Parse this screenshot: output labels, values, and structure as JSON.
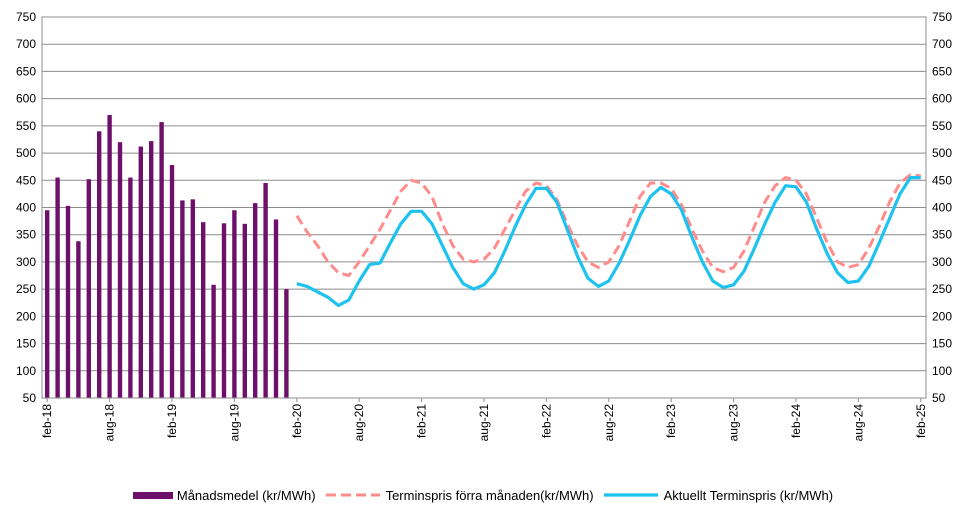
{
  "chart_data": {
    "type": "bar",
    "title": "",
    "xlabel": "",
    "ylabel": "",
    "ylim": [
      50,
      750
    ],
    "y_ticks": [
      50,
      100,
      150,
      200,
      250,
      300,
      350,
      400,
      450,
      500,
      550,
      600,
      650,
      700,
      750
    ],
    "x_tick_labels": [
      "feb-18",
      "aug-18",
      "feb-19",
      "aug-19",
      "feb-20",
      "aug-20",
      "feb-21",
      "aug-21",
      "feb-22",
      "aug-22",
      "feb-23",
      "aug-23",
      "feb-24",
      "aug-24",
      "feb-25"
    ],
    "x_range_months": [
      "2018-02",
      "2025-02"
    ],
    "grid": true,
    "legend_position": "bottom",
    "secondary_y_axis": true,
    "series": [
      {
        "name": "Månadsmedel (kr/MWh)",
        "kind": "bar",
        "color": "#6d0f6b",
        "months": [
          "2018-02",
          "2018-03",
          "2018-04",
          "2018-05",
          "2018-06",
          "2018-07",
          "2018-08",
          "2018-09",
          "2018-10",
          "2018-11",
          "2018-12",
          "2019-01",
          "2019-02",
          "2019-03",
          "2019-04",
          "2019-05",
          "2019-06",
          "2019-07",
          "2019-08",
          "2019-09",
          "2019-10",
          "2019-11",
          "2019-12",
          "2020-01"
        ],
        "values": [
          395,
          455,
          403,
          338,
          452,
          540,
          570,
          520,
          455,
          512,
          522,
          557,
          478,
          413,
          415,
          373,
          258,
          371,
          395,
          370,
          408,
          445,
          378,
          250
        ]
      },
      {
        "name": "Terminspris förra månaden(kr/MWh)",
        "kind": "line",
        "style": "dashed",
        "color": "#ff8c8c",
        "months": [
          "2020-02",
          "2020-03",
          "2020-04",
          "2020-05",
          "2020-06",
          "2020-07",
          "2020-08",
          "2020-09",
          "2020-10",
          "2020-11",
          "2020-12",
          "2021-01",
          "2021-02",
          "2021-03",
          "2021-04",
          "2021-05",
          "2021-06",
          "2021-07",
          "2021-08",
          "2021-09",
          "2021-10",
          "2021-11",
          "2021-12",
          "2022-01",
          "2022-02",
          "2022-03",
          "2022-04",
          "2022-05",
          "2022-06",
          "2022-07",
          "2022-08",
          "2022-09",
          "2022-10",
          "2022-11",
          "2022-12",
          "2023-01",
          "2023-02",
          "2023-03",
          "2023-04",
          "2023-05",
          "2023-06",
          "2023-07",
          "2023-08",
          "2023-09",
          "2023-10",
          "2023-11",
          "2023-12",
          "2024-01",
          "2024-02",
          "2024-03",
          "2024-04",
          "2024-05",
          "2024-06",
          "2024-07",
          "2024-08",
          "2024-09",
          "2024-10",
          "2024-11",
          "2024-12",
          "2025-01",
          "2025-02"
        ],
        "values": [
          385,
          355,
          330,
          300,
          280,
          275,
          300,
          330,
          360,
          395,
          430,
          450,
          445,
          420,
          370,
          330,
          305,
          300,
          305,
          325,
          360,
          395,
          430,
          445,
          440,
          415,
          370,
          330,
          300,
          290,
          300,
          330,
          375,
          420,
          445,
          445,
          435,
          405,
          360,
          320,
          290,
          282,
          290,
          320,
          365,
          410,
          440,
          455,
          450,
          425,
          380,
          335,
          300,
          290,
          295,
          325,
          365,
          410,
          445,
          460,
          458
        ]
      },
      {
        "name": "Aktuellt Terminspris (kr/MWh)",
        "kind": "line",
        "style": "solid",
        "color": "#1ec2ef",
        "months": [
          "2020-02",
          "2020-03",
          "2020-04",
          "2020-05",
          "2020-06",
          "2020-07",
          "2020-08",
          "2020-09",
          "2020-10",
          "2020-11",
          "2020-12",
          "2021-01",
          "2021-02",
          "2021-03",
          "2021-04",
          "2021-05",
          "2021-06",
          "2021-07",
          "2021-08",
          "2021-09",
          "2021-10",
          "2021-11",
          "2021-12",
          "2022-01",
          "2022-02",
          "2022-03",
          "2022-04",
          "2022-05",
          "2022-06",
          "2022-07",
          "2022-08",
          "2022-09",
          "2022-10",
          "2022-11",
          "2022-12",
          "2023-01",
          "2023-02",
          "2023-03",
          "2023-04",
          "2023-05",
          "2023-06",
          "2023-07",
          "2023-08",
          "2023-09",
          "2023-10",
          "2023-11",
          "2023-12",
          "2024-01",
          "2024-02",
          "2024-03",
          "2024-04",
          "2024-05",
          "2024-06",
          "2024-07",
          "2024-08",
          "2024-09",
          "2024-10",
          "2024-11",
          "2024-12",
          "2025-01",
          "2025-02"
        ],
        "values": [
          260,
          255,
          245,
          235,
          220,
          230,
          265,
          295,
          298,
          335,
          370,
          393,
          393,
          370,
          330,
          290,
          260,
          250,
          258,
          280,
          320,
          365,
          405,
          435,
          435,
          410,
          360,
          310,
          270,
          255,
          265,
          298,
          340,
          385,
          420,
          437,
          425,
          395,
          345,
          300,
          265,
          253,
          258,
          283,
          325,
          370,
          410,
          440,
          438,
          410,
          360,
          315,
          280,
          262,
          265,
          292,
          335,
          380,
          425,
          455,
          455
        ]
      }
    ]
  }
}
